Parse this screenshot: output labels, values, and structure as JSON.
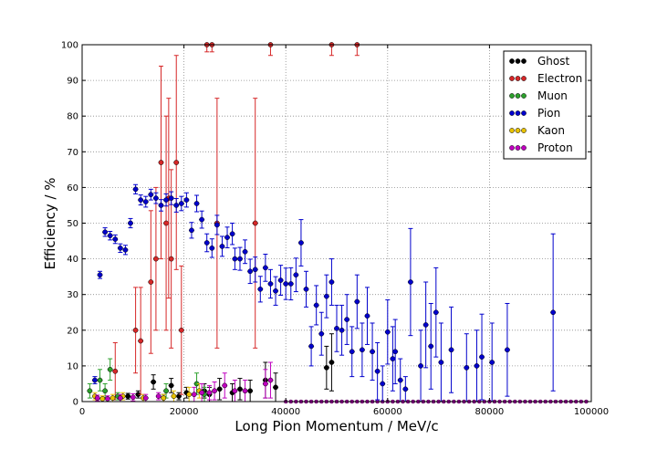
{
  "chart_data": {
    "type": "scatter",
    "title": "",
    "xlabel": "Long Pion Momentum / MeV/c",
    "ylabel": "Efficiency / %",
    "xlim": [
      0,
      100000
    ],
    "ylim": [
      0,
      100
    ],
    "x_ticks": [
      0,
      20000,
      40000,
      60000,
      80000,
      100000
    ],
    "y_ticks": [
      0,
      10,
      20,
      30,
      40,
      50,
      60,
      70,
      80,
      90,
      100
    ],
    "grid": true,
    "legend_position": "top-right",
    "series": [
      {
        "name": "Ghost",
        "color": "#000000",
        "points": [
          [
            9000,
            1.5,
            0.8
          ],
          [
            11000,
            2,
            1
          ],
          [
            14000,
            5.5,
            2
          ],
          [
            16000,
            1,
            1
          ],
          [
            17500,
            4.5,
            2
          ],
          [
            19000,
            1.5,
            1
          ],
          [
            20500,
            2.5,
            1.5
          ],
          [
            24000,
            3,
            2
          ],
          [
            25000,
            2,
            2
          ],
          [
            27000,
            3.5,
            3
          ],
          [
            29500,
            2.5,
            2.5
          ],
          [
            31000,
            3.5,
            3
          ],
          [
            33000,
            3,
            3
          ],
          [
            36000,
            6,
            5
          ],
          [
            38000,
            4,
            4
          ],
          [
            48000,
            9.5,
            6
          ],
          [
            49000,
            11,
            8
          ]
        ]
      },
      {
        "name": "Electron",
        "color": "#d62728",
        "points": [
          [
            6500,
            8.5,
            8
          ],
          [
            10500,
            20,
            12
          ],
          [
            11500,
            17,
            15
          ],
          [
            13500,
            33.5,
            20
          ],
          [
            14500,
            40,
            20
          ],
          [
            15500,
            67,
            27
          ],
          [
            16500,
            50,
            30
          ],
          [
            17000,
            57,
            28
          ],
          [
            17500,
            40,
            25
          ],
          [
            18500,
            67,
            30
          ],
          [
            19500,
            20,
            18
          ],
          [
            24500,
            100,
            2
          ],
          [
            25500,
            100,
            2
          ],
          [
            26500,
            50,
            35
          ],
          [
            34000,
            50,
            35
          ],
          [
            37000,
            100,
            3
          ],
          [
            49000,
            100,
            3
          ],
          [
            54000,
            100,
            3
          ]
        ]
      },
      {
        "name": "Muon",
        "color": "#2ca02c",
        "points": [
          [
            1500,
            3,
            2
          ],
          [
            3500,
            6,
            3
          ],
          [
            4500,
            3,
            2
          ],
          [
            5500,
            9,
            3
          ],
          [
            7000,
            1.5,
            1
          ],
          [
            16500,
            3,
            2
          ],
          [
            22500,
            5,
            3
          ],
          [
            24000,
            2,
            2
          ]
        ]
      },
      {
        "name": "Pion",
        "color": "#0000cc",
        "points": [
          [
            2500,
            6,
            1
          ],
          [
            3500,
            35.5,
            1
          ],
          [
            4500,
            47.5,
            1.2
          ],
          [
            5500,
            46.5,
            1.2
          ],
          [
            6500,
            45.5,
            1.2
          ],
          [
            7500,
            43,
            1.2
          ],
          [
            8500,
            42.5,
            1.3
          ],
          [
            9500,
            50,
            1.3
          ],
          [
            10500,
            59.5,
            1.3
          ],
          [
            11500,
            56.5,
            1.4
          ],
          [
            12500,
            56,
            1.5
          ],
          [
            13500,
            58,
            1.5
          ],
          [
            14500,
            57,
            1.5
          ],
          [
            15500,
            55,
            1.6
          ],
          [
            16500,
            56.5,
            1.7
          ],
          [
            17500,
            57,
            1.8
          ],
          [
            18500,
            55,
            1.9
          ],
          [
            19500,
            55.5,
            2
          ],
          [
            20500,
            56.5,
            2
          ],
          [
            21500,
            48,
            2.2
          ],
          [
            22500,
            55.5,
            2.3
          ],
          [
            23500,
            51,
            2.4
          ],
          [
            24500,
            44.5,
            2.5
          ],
          [
            25500,
            43,
            2.6
          ],
          [
            26500,
            49.5,
            2.7
          ],
          [
            27500,
            43.5,
            2.8
          ],
          [
            28500,
            46,
            2.9
          ],
          [
            29500,
            47,
            3
          ],
          [
            30000,
            40,
            3
          ],
          [
            31000,
            40,
            3.2
          ],
          [
            32000,
            42,
            3.3
          ],
          [
            33000,
            36.5,
            3.4
          ],
          [
            34000,
            37,
            3.5
          ],
          [
            35000,
            31.5,
            3.6
          ],
          [
            36000,
            37.5,
            3.8
          ],
          [
            37000,
            33,
            4
          ],
          [
            38000,
            31,
            4
          ],
          [
            39000,
            34,
            4.2
          ],
          [
            40000,
            33,
            4.4
          ],
          [
            41000,
            33,
            4.5
          ],
          [
            42000,
            35.5,
            4.7
          ],
          [
            43000,
            44.5,
            6.5
          ],
          [
            44000,
            31.5,
            5
          ],
          [
            45000,
            15.5,
            5.5
          ],
          [
            46000,
            27,
            5.5
          ],
          [
            47000,
            19,
            6
          ],
          [
            48000,
            29.5,
            6
          ],
          [
            49000,
            33.5,
            6.5
          ],
          [
            50000,
            20.5,
            6.5
          ],
          [
            51000,
            20,
            7
          ],
          [
            52000,
            23,
            7
          ],
          [
            53000,
            14,
            7
          ],
          [
            54000,
            28,
            7.5
          ],
          [
            55000,
            14.5,
            7.5
          ],
          [
            56000,
            24,
            8
          ],
          [
            57000,
            14,
            8
          ],
          [
            58000,
            8.5,
            8
          ],
          [
            59000,
            5,
            5
          ],
          [
            60000,
            19.5,
            9
          ],
          [
            61000,
            12,
            9
          ],
          [
            61500,
            14,
            9
          ],
          [
            62500,
            6,
            6
          ],
          [
            63500,
            3.5,
            3.5
          ],
          [
            64500,
            33.5,
            15
          ],
          [
            66500,
            10,
            10
          ],
          [
            67500,
            21.5,
            12
          ],
          [
            68500,
            15.5,
            12
          ],
          [
            69500,
            25,
            12.5
          ],
          [
            70500,
            11,
            11
          ],
          [
            72500,
            14.5,
            12
          ],
          [
            75500,
            9.5,
            9.5
          ],
          [
            77500,
            10,
            10
          ],
          [
            78500,
            12.5,
            12
          ],
          [
            80500,
            11,
            11
          ],
          [
            83500,
            14.5,
            13
          ],
          [
            92500,
            25,
            22
          ]
        ]
      },
      {
        "name": "Kaon",
        "color": "#e8c200",
        "points": [
          [
            2500,
            1.5,
            1
          ],
          [
            4000,
            0.8,
            0.8
          ],
          [
            6000,
            1,
            1
          ],
          [
            8000,
            1.5,
            1
          ],
          [
            12000,
            1,
            1
          ],
          [
            16000,
            1,
            1
          ],
          [
            18000,
            1.5,
            1.5
          ],
          [
            21000,
            2,
            2
          ],
          [
            23000,
            3,
            2
          ]
        ]
      },
      {
        "name": "Proton",
        "color": "#c000c0",
        "points": [
          [
            3000,
            1,
            0.8
          ],
          [
            5000,
            0.8,
            0.8
          ],
          [
            7500,
            1,
            1
          ],
          [
            10000,
            1.2,
            1
          ],
          [
            12500,
            1,
            1
          ],
          [
            15000,
            1.5,
            1
          ],
          [
            22000,
            2,
            2
          ],
          [
            23500,
            2.5,
            2.5
          ],
          [
            25000,
            2.5,
            2
          ],
          [
            26000,
            3,
            2.5
          ],
          [
            28000,
            4.5,
            3.5
          ],
          [
            30000,
            3,
            3
          ],
          [
            32000,
            3,
            3
          ],
          [
            36000,
            5,
            4
          ],
          [
            37000,
            6,
            5
          ]
        ]
      }
    ]
  }
}
